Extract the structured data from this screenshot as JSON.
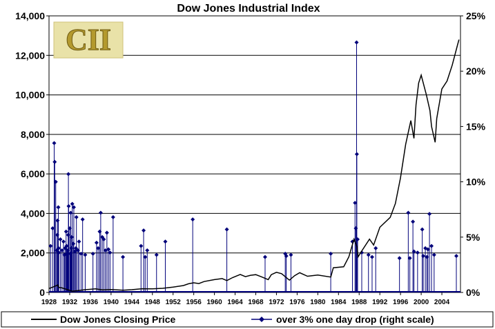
{
  "chart_data": {
    "type": "line",
    "title": "Dow Jones Industrial Index",
    "logo_text": "CII",
    "x_tick_labels": [
      "1928",
      "1932",
      "1936",
      "1940",
      "1944",
      "1948",
      "1952",
      "1956",
      "1960",
      "1964",
      "1968",
      "1972",
      "1976",
      "1980",
      "1984",
      "1988",
      "1992",
      "1996",
      "2000",
      "2004"
    ],
    "x_range": [
      1928,
      2007.6
    ],
    "y_left_range": [
      0,
      14000
    ],
    "y_left_tick_labels": [
      "0",
      "2,000",
      "4,000",
      "6,000",
      "8,000",
      "10,000",
      "12,000",
      "14,000"
    ],
    "y_right_range": [
      0,
      25
    ],
    "y_right_tick_labels": [
      "0%",
      "5%",
      "10%",
      "15%",
      "20%",
      "25%"
    ],
    "grid": "horizontal",
    "legend_position": "bottom",
    "colors": {
      "price": "#000000",
      "drops": "#00007a"
    },
    "series": [
      {
        "name": "Dow Jones Closing Price",
        "axis": "left",
        "x": [
          1928.0,
          1929.0,
          1929.7,
          1929.9,
          1930.5,
          1931.5,
          1932.5,
          1933.5,
          1935.0,
          1937.0,
          1938.3,
          1940.0,
          1942.3,
          1944.0,
          1946.0,
          1948.0,
          1950.0,
          1952.0,
          1954.0,
          1955.0,
          1956.0,
          1957.0,
          1958.0,
          1960.0,
          1961.5,
          1962.4,
          1963.5,
          1965.0,
          1966.0,
          1967.0,
          1968.0,
          1969.0,
          1970.4,
          1971.0,
          1972.0,
          1973.0,
          1974.5,
          1975.5,
          1976.5,
          1978.0,
          1980.0,
          1982.5,
          1983.0,
          1985.0,
          1986.0,
          1987.0,
          1987.6,
          1987.8,
          1988.5,
          1990.0,
          1990.8,
          1992.0,
          1994.0,
          1995.0,
          1996.0,
          1997.0,
          1998.0,
          1998.6,
          1999.0,
          1999.5,
          2000.0,
          2001.0,
          2001.7,
          2002.0,
          2002.7,
          2003.0,
          2004.0,
          2005.0,
          2006.0,
          2007.0,
          2007.3
        ],
        "y": [
          200,
          300,
          380,
          250,
          230,
          150,
          60,
          90,
          140,
          180,
          130,
          150,
          110,
          140,
          190,
          180,
          210,
          270,
          350,
          440,
          490,
          450,
          550,
          650,
          700,
          600,
          750,
          910,
          800,
          870,
          900,
          800,
          650,
          900,
          1020,
          950,
          620,
          850,
          1000,
          820,
          880,
          780,
          1250,
          1300,
          1800,
          2700,
          2300,
          1800,
          2100,
          2700,
          2400,
          3300,
          3800,
          4500,
          5800,
          7500,
          8700,
          7800,
          9500,
          10600,
          11000,
          10000,
          9200,
          8400,
          7600,
          8800,
          10300,
          10700,
          11500,
          12500,
          12800
        ]
      },
      {
        "name": "over 3% one day drop (right scale)",
        "axis": "right",
        "x": [
          1928.3,
          1928.7,
          1929.0,
          1929.1,
          1929.3,
          1929.5,
          1929.6,
          1929.65,
          1929.8,
          1929.85,
          1929.9,
          1930.2,
          1930.5,
          1930.8,
          1931.0,
          1931.1,
          1931.3,
          1931.4,
          1931.5,
          1931.6,
          1931.7,
          1931.75,
          1931.8,
          1932.0,
          1932.1,
          1932.2,
          1932.3,
          1932.4,
          1932.5,
          1932.7,
          1932.8,
          1933.0,
          1933.2,
          1933.3,
          1933.6,
          1933.8,
          1934.2,
          1934.5,
          1935.0,
          1936.5,
          1937.2,
          1937.5,
          1937.8,
          1938.0,
          1938.3,
          1938.6,
          1938.9,
          1939.2,
          1939.5,
          1939.8,
          1940.4,
          1942.3,
          1945.8,
          1946.3,
          1946.6,
          1947.0,
          1948.8,
          1950.5,
          1955.8,
          1962.4,
          1969.8,
          1973.7,
          1973.9,
          1974.8,
          1982.5,
          1986.7,
          1987.2,
          1987.35,
          1987.5,
          1987.55,
          1987.7,
          1988.5,
          1989.8,
          1990.5,
          1991.2,
          1995.8,
          1997.5,
          1997.8,
          1998.4,
          1998.6,
          1999.3,
          2000.2,
          2000.4,
          2000.8,
          2001.1,
          2001.3,
          2001.6,
          2002.0,
          2002.5,
          2006.8
        ],
        "y": [
          4.2,
          5.8,
          13.5,
          11.8,
          10.0,
          3.8,
          5.2,
          6.5,
          7.7,
          4.0,
          3.6,
          4.8,
          3.8,
          4.6,
          3.4,
          4.0,
          5.5,
          4.2,
          3.5,
          3.8,
          5.2,
          10.7,
          7.8,
          5.8,
          3.5,
          7.2,
          4.0,
          5.0,
          8.0,
          4.4,
          7.7,
          3.7,
          4.0,
          6.8,
          3.8,
          4.6,
          3.5,
          6.6,
          3.4,
          3.5,
          4.5,
          4.0,
          5.5,
          7.2,
          5.0,
          4.8,
          3.8,
          5.4,
          3.9,
          3.6,
          6.8,
          3.2,
          4.2,
          5.6,
          3.2,
          3.8,
          3.4,
          4.6,
          6.6,
          5.7,
          3.2,
          3.5,
          3.3,
          3.4,
          3.5,
          4.6,
          8.1,
          5.8,
          22.6,
          12.5,
          4.8,
          3.6,
          3.4,
          3.2,
          4.0,
          3.1,
          7.2,
          3.1,
          6.4,
          3.7,
          3.6,
          5.7,
          3.3,
          4.0,
          3.2,
          3.9,
          7.1,
          4.2,
          3.4,
          3.3
        ]
      }
    ]
  }
}
